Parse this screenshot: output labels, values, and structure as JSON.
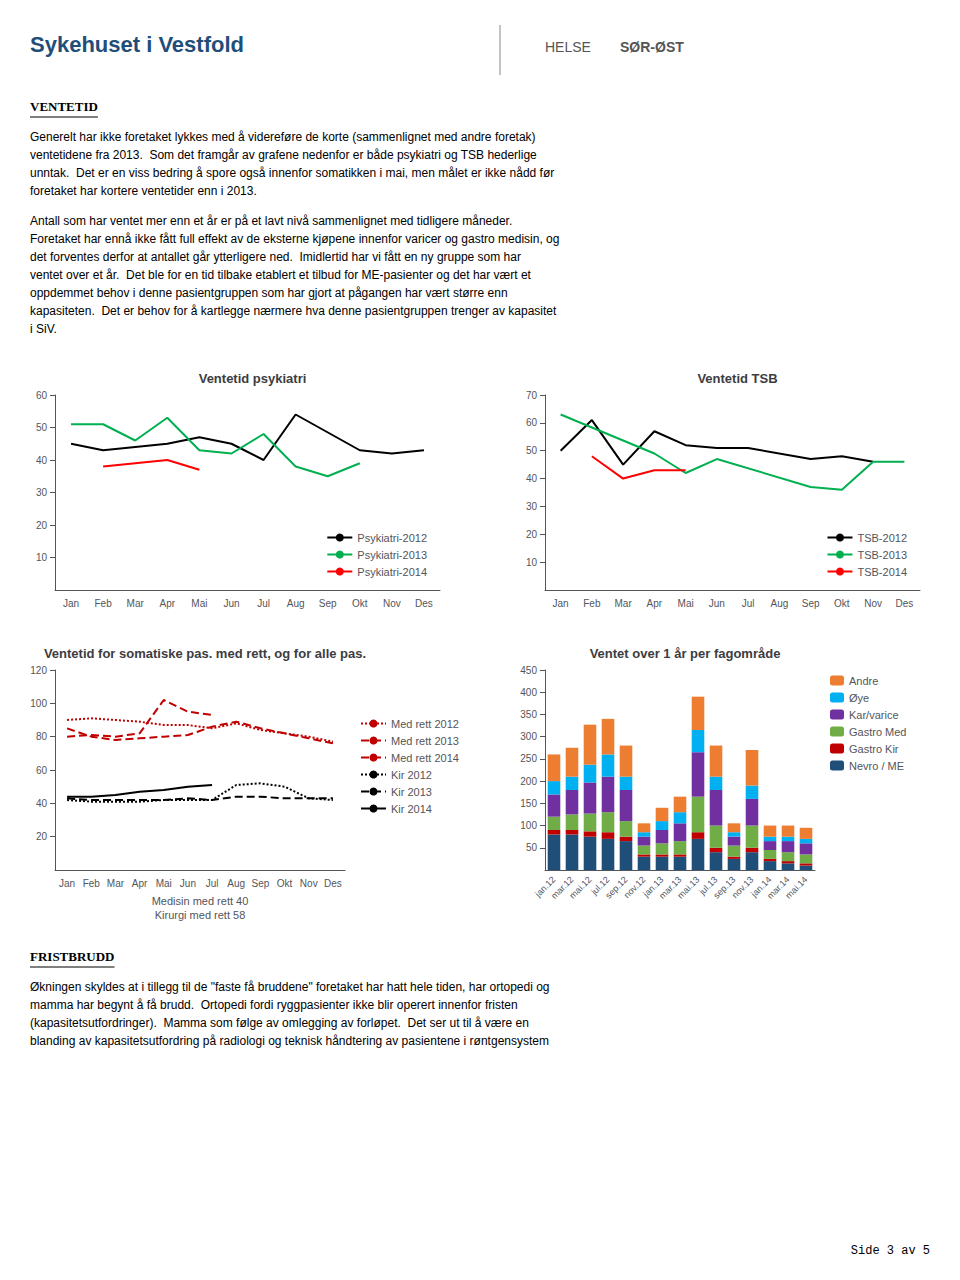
{
  "header_title": "Sykehuset i Vestfold",
  "header_logo": [
    "HELSE",
    "SØR-ØST"
  ],
  "sections": [
    {
      "title": "VENTETID",
      "paragraphs": [
        "Generelt har ikke foretaket lykkes med å videreføre de korte (sammenlignet med andre foretak)\nventetidene fra 2013.  Som det framgår av grafene nedenfor er både psykiatri og TSB hederlige\nunntak.  Det er en viss bedring å spore også innenfor somatikken i mai, men målet er ikke nådd før\nforetaket har kortere ventetider enn i 2013.",
        "Antall som har ventet mer enn et år er på et lavt nivå sammenlignet med tidligere måneder.\nForetaket har ennå ikke fått full effekt av de eksterne kjøpene innenfor varicer og gastro medisin, og\ndet forventes derfor at antallet går ytterligere ned.  Imidlertid har vi fått en ny gruppe som har\nventet over et år.  Det ble for en tid tilbake etablert et tilbud for ME-pasienter og det har vært et\noppdemmet behov i denne pasientgruppen som har gjort at pågangen har vært større enn\nkapasiteten.  Det er behov for å kartlegge nærmere hva denne pasientgruppen trenger av kapasitet\ni SiV."
      ]
    },
    {
      "title": "FRISTBRUDD",
      "paragraphs": [
        "Økningen skyldes at i tillegg til de \"faste få bruddene\" foretaket har hatt hele tiden, har ortopedi og\nmamma har begynt å få brudd.  Ortopedi fordi ryggpasienter ikke blir operert innenfor fristen\n(kapasitetsutfordringer).  Mamma som følge av omlegging av forløpet.  Det ser ut til å være en\nblanding av kapasitetsutfordring på radiologi og teknisk håndtering av pasientene i røntgensystem"
      ]
    }
  ],
  "page_text": "Side 3 av 5",
  "chart_data": [
    {
      "type": "line",
      "title": "Ventetid psykiatri",
      "categories": [
        "Jan",
        "Feb",
        "Mar",
        "Apr",
        "Mai",
        "Jun",
        "Jul",
        "Aug",
        "Sep",
        "Okt",
        "Nov",
        "Des"
      ],
      "series": [
        {
          "name": "Psykiatri-2012",
          "color": "#000000",
          "values": [
            45,
            43,
            44,
            45,
            47,
            45,
            40,
            54,
            null,
            43,
            42,
            43
          ]
        },
        {
          "name": "Psykiatri-2013",
          "color": "#00B050",
          "values": [
            51,
            51,
            46,
            53,
            43,
            42,
            48,
            38,
            35,
            39,
            null,
            null
          ]
        },
        {
          "name": "Psykiatri-2014",
          "color": "#FF0000",
          "values": [
            null,
            38,
            39,
            40,
            37,
            null,
            null,
            null,
            null,
            null,
            null,
            null
          ]
        }
      ],
      "ylim": [
        0,
        60
      ],
      "yticks": [
        10,
        20,
        30,
        40,
        50,
        60
      ],
      "grid": false,
      "legend": "lower right"
    },
    {
      "type": "line",
      "title": "Ventetid TSB",
      "categories": [
        "Jan",
        "Feb",
        "Mar",
        "Apr",
        "Mai",
        "Jun",
        "Jul",
        "Aug",
        "Sep",
        "Okt",
        "Nov",
        "Des"
      ],
      "series": [
        {
          "name": "TSB-2012",
          "color": "#000000",
          "values": [
            50,
            61,
            45,
            57,
            52,
            51,
            51,
            null,
            47,
            48,
            46,
            null
          ]
        },
        {
          "name": "TSB-2013",
          "color": "#00B050",
          "values": [
            63,
            null,
            null,
            49,
            42,
            47,
            null,
            null,
            37,
            36,
            46,
            46
          ]
        },
        {
          "name": "TSB-2014",
          "color": "#FF0000",
          "values": [
            null,
            48,
            40,
            43,
            43,
            null,
            null,
            null,
            null,
            null,
            null,
            null
          ]
        }
      ],
      "ylim": [
        0,
        70
      ],
      "yticks": [
        10,
        20,
        30,
        40,
        50,
        60,
        70
      ],
      "grid": false,
      "legend": "lower right"
    },
    {
      "type": "line",
      "title": "Ventetid for somatiske pas. med rett, og for alle pas.",
      "x_label": "Medisin med rett 40\nKirurgi med rett 58",
      "categories": [
        "Jan",
        "Feb",
        "Mar",
        "Apr",
        "Mai",
        "Jun",
        "Jul",
        "Aug",
        "Sep",
        "Okt",
        "Nov",
        "Des"
      ],
      "series": [
        {
          "name": "Med rett 2012",
          "color": "#C00000",
          "line_style": "dotted",
          "values": [
            90,
            91,
            90,
            89,
            87,
            87,
            85,
            88,
            84,
            82,
            80,
            77
          ]
        },
        {
          "name": "Med rett 2013",
          "color": "#C00000",
          "line_style": "dashed",
          "values": [
            85,
            80,
            78,
            79,
            80,
            81,
            86,
            89,
            85,
            82,
            79,
            76
          ]
        },
        {
          "name": "Med rett 2014",
          "color": "#C00000",
          "line_style": "dashed",
          "values": [
            80,
            81,
            80,
            82,
            102,
            95,
            93,
            null,
            null,
            null,
            null,
            null
          ]
        },
        {
          "name": "Kir 2012",
          "color": "#000000",
          "line_style": "dotted",
          "values": [
            42,
            41,
            41,
            41,
            42,
            42,
            42,
            51,
            52,
            50,
            43,
            42
          ]
        },
        {
          "name": "Kir 2013",
          "color": "#000000",
          "line_style": "dashed",
          "values": [
            43,
            42,
            42,
            42,
            42,
            43,
            42,
            44,
            44,
            43,
            43,
            43
          ]
        },
        {
          "name": "Kir 2014",
          "color": "#000000",
          "line_style": "solid",
          "values": [
            44,
            44,
            45,
            47,
            48,
            50,
            51,
            null,
            null,
            null,
            null,
            null
          ]
        }
      ],
      "ylim": [
        0,
        120
      ],
      "yticks": [
        20,
        40,
        60,
        80,
        100,
        120
      ],
      "grid": false,
      "legend": "center right"
    },
    {
      "type": "bar",
      "stacked": true,
      "title": "Ventet over 1 år per fagområde",
      "categories": [
        "jan.12",
        "mar.12",
        "mai.12",
        "jul.12",
        "sep.12",
        "nov.12",
        "jan.13",
        "mar.13",
        "mai.13",
        "jul.13",
        "sep.13",
        "nov.13",
        "jan.14",
        "mar.14",
        "mai.14"
      ],
      "series": [
        {
          "name": "Nevro / ME",
          "color": "#1F4E79",
          "values": [
            80,
            80,
            75,
            70,
            65,
            30,
            30,
            30,
            70,
            40,
            25,
            40,
            20,
            15,
            10
          ]
        },
        {
          "name": "Gastro Kir",
          "color": "#C00000",
          "values": [
            10,
            10,
            12,
            15,
            10,
            5,
            5,
            5,
            15,
            10,
            5,
            10,
            5,
            5,
            5
          ]
        },
        {
          "name": "Gastro Med",
          "color": "#70AD47",
          "values": [
            30,
            35,
            40,
            45,
            35,
            20,
            25,
            30,
            80,
            50,
            25,
            50,
            20,
            20,
            20
          ]
        },
        {
          "name": "Kar/varice",
          "color": "#7030A0",
          "values": [
            50,
            55,
            70,
            80,
            70,
            20,
            30,
            40,
            100,
            80,
            20,
            60,
            20,
            25,
            25
          ]
        },
        {
          "name": "Øye",
          "color": "#00B0F0",
          "values": [
            30,
            30,
            40,
            50,
            30,
            10,
            20,
            25,
            50,
            30,
            10,
            30,
            10,
            10,
            10
          ]
        },
        {
          "name": "Andre",
          "color": "#ED7D31",
          "values": [
            60,
            65,
            90,
            80,
            70,
            20,
            30,
            35,
            75,
            70,
            20,
            80,
            25,
            25,
            25
          ]
        }
      ],
      "ylim": [
        0,
        450
      ],
      "yticks": [
        50,
        100,
        150,
        200,
        250,
        300,
        350,
        400,
        450
      ],
      "grid": false,
      "legend": "upper right"
    }
  ]
}
